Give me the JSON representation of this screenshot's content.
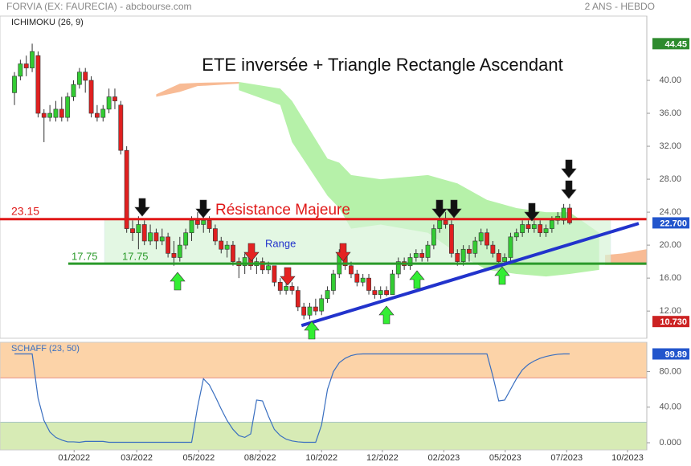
{
  "header": {
    "source": "FORVIA (EX: FAURECIA) - abcbourse.com",
    "period": "2 ANS - HEBDO",
    "indicator": "ICHIMOKU (26, 9)"
  },
  "chart_data": [
    {
      "type": "candlestick",
      "title": "ETE inversée + Triangle Rectangle Ascendant",
      "xlim": [
        -2.45,
        107.07
      ],
      "ylim": [
        8.7,
        47.8
      ],
      "yticks": [
        {
          "value": 12,
          "label": "12.00"
        },
        {
          "value": 16,
          "label": "16.00"
        },
        {
          "value": 20,
          "label": "20.00"
        },
        {
          "value": 24,
          "label": "24.00"
        },
        {
          "value": 28,
          "label": "28.00"
        },
        {
          "value": 32,
          "label": "32.00"
        },
        {
          "value": 36,
          "label": "36.00"
        },
        {
          "value": 40,
          "label": "40.00"
        }
      ],
      "up_color": "#33cc33",
      "down_color": "#e02020",
      "open": [
        38.5,
        40.5,
        42,
        41.5,
        43,
        36,
        35.5,
        35.5,
        36.5,
        35.5,
        38,
        39.5,
        41,
        40,
        36,
        35.5,
        36.5,
        38,
        37,
        31.5,
        22,
        21.5,
        22.5,
        20.5,
        21.5,
        20.5,
        21,
        19,
        18.5,
        20,
        21.5,
        23,
        22.5,
        23,
        22,
        20.5,
        19.5,
        20,
        18,
        17.5,
        18.5,
        17.5,
        18,
        17,
        17.5,
        15.5,
        14.5,
        15,
        14.5,
        12.5,
        11.5,
        12.5,
        12,
        13.5,
        14.5,
        16.5,
        19,
        17.5,
        16.5,
        15.5,
        16,
        14.5,
        14,
        14.5,
        14,
        16.5,
        18,
        17.5,
        18.5,
        19,
        18.5,
        20,
        22,
        23,
        22.5,
        19,
        18,
        19.5,
        19,
        20.5,
        21.5,
        20,
        19,
        18,
        18.5,
        21,
        21.5,
        22.5,
        22,
        22.5,
        21.5,
        22,
        23,
        23,
        24.5
      ],
      "high": [
        41,
        42.5,
        43,
        44.45,
        43.5,
        36.5,
        37,
        37.5,
        38,
        38.5,
        40,
        41.5,
        41.5,
        40.5,
        37,
        37,
        39,
        39,
        37.5,
        32,
        23,
        23.5,
        23,
        22.5,
        22,
        22,
        21.5,
        20.5,
        21,
        22,
        23.5,
        24,
        23.8,
        23.5,
        22.5,
        21,
        20.5,
        20.5,
        18.5,
        19,
        19,
        18.5,
        18.5,
        18,
        17.5,
        16,
        15.5,
        15.5,
        15,
        13,
        13,
        13.5,
        14,
        15,
        17,
        19.5,
        19.5,
        18,
        17,
        16.5,
        16.5,
        15,
        15,
        15,
        17,
        18.5,
        18.5,
        19,
        19.5,
        19.5,
        20.5,
        22.5,
        24,
        24,
        23,
        19.5,
        20,
        20,
        21,
        22,
        22,
        20.5,
        19.5,
        19,
        21.5,
        22,
        23,
        23,
        23,
        23,
        22.5,
        23.5,
        24,
        25,
        25
      ],
      "low": [
        37,
        40,
        40.5,
        41,
        35.5,
        32.5,
        35,
        35,
        35,
        35,
        37.5,
        39,
        38.5,
        35.5,
        35,
        35,
        36,
        36.5,
        31,
        21.5,
        20.5,
        19.5,
        20,
        20,
        19.5,
        20,
        18.5,
        17.5,
        18,
        19.5,
        20.5,
        22,
        21.5,
        21.5,
        20,
        19,
        18.5,
        17.5,
        16,
        16.5,
        17,
        16.5,
        16.5,
        16.5,
        15,
        14,
        14,
        14,
        12,
        11,
        11,
        11.5,
        11.5,
        13,
        14,
        16,
        17,
        16,
        15,
        15,
        14,
        13.5,
        13.5,
        13.8,
        14,
        16,
        17,
        17,
        18,
        18,
        18,
        19.5,
        21.5,
        22,
        18.5,
        17.5,
        17.5,
        18,
        18.5,
        20,
        19.5,
        18.5,
        17.5,
        17.5,
        18,
        20.5,
        21,
        21.5,
        21.5,
        21,
        21,
        21.5,
        22.5,
        22.5,
        22.5
      ],
      "close": [
        40.5,
        42,
        41.5,
        43.5,
        36,
        35.5,
        36,
        36.5,
        35.5,
        38,
        39.5,
        41,
        40,
        36,
        35.5,
        36.5,
        38,
        37.5,
        31.5,
        22,
        21.5,
        22.5,
        20.5,
        21.5,
        20.5,
        21,
        19,
        18.5,
        20,
        21.5,
        23,
        22.5,
        23,
        22,
        20.5,
        19.5,
        20,
        18,
        17.5,
        18.5,
        17.5,
        18,
        17,
        17.5,
        15.5,
        14.5,
        15,
        14.5,
        12.5,
        11.5,
        12.5,
        12,
        13.5,
        14.5,
        16.5,
        19,
        17.5,
        16.5,
        15.5,
        16,
        14.5,
        14,
        14.5,
        14,
        16.5,
        18,
        17.5,
        18.5,
        19,
        18.5,
        20,
        22,
        23,
        22.5,
        19,
        18,
        19.5,
        19,
        20.5,
        21.5,
        20,
        19,
        18,
        18.5,
        21,
        21.5,
        22.5,
        22,
        22.5,
        21.5,
        22,
        23,
        23.5,
        24.5,
        22.7
      ],
      "cloud_bull": {
        "color": "#aef0a0",
        "x": [
          38,
          45,
          47,
          53,
          55,
          57,
          62,
          70,
          75,
          80,
          85,
          90,
          94,
          99
        ],
        "upper": [
          39.8,
          39,
          37.5,
          30.5,
          30,
          28.5,
          28,
          28.5,
          27.5,
          25.5,
          24.5,
          24,
          24,
          21.5
        ],
        "lower": [
          38.8,
          37,
          32.5,
          26,
          24.5,
          22,
          22.5,
          21.5,
          19,
          17,
          16.5,
          16.2,
          16.5,
          17
        ]
      },
      "cloud_bear": [
        {
          "color": "#f7b48a",
          "x": [
            24,
            28,
            31,
            38
          ],
          "upper": [
            38.3,
            39.6,
            39.7,
            39.8
          ],
          "lower": [
            38,
            38.6,
            39.3,
            39.6
          ]
        },
        {
          "color": "#f7b48a",
          "x": [
            100,
            103,
            107
          ],
          "upper": [
            18.8,
            19,
            19.5
          ],
          "lower": [
            17.6,
            17.6,
            17.6
          ]
        }
      ],
      "resistance": {
        "value": 23.15,
        "label": "23.15",
        "text": "Résistance Majeure",
        "color": "#e01818"
      },
      "support": {
        "value": 17.75,
        "label": "17.75",
        "color": "#2a9a2a"
      },
      "range_label": "Range",
      "trendline": {
        "x": [
          48.6,
          105.7
        ],
        "y": [
          10.24,
          22.63
        ],
        "color": "#2233cc"
      },
      "price_flags": [
        {
          "value": 44.45,
          "label": "44.45",
          "color": "#2e8b2e"
        },
        {
          "value": 22.7,
          "label": "22.700",
          "color": "#2255cc"
        },
        {
          "value": 10.73,
          "label": "10.730",
          "color": "#cc2222"
        }
      ]
    },
    {
      "type": "line",
      "title": "SCHAFF (23, 50)",
      "color": "#3a6fc0",
      "xlim": [
        -2.45,
        107.07
      ],
      "ylim": [
        -8.1,
        113
      ],
      "yticks": [
        {
          "value": 0,
          "label": "0.000"
        },
        {
          "value": 40,
          "label": "40.00"
        },
        {
          "value": 80,
          "label": "80.00"
        }
      ],
      "upper_band": {
        "value": 73,
        "color": "#fcd3a8"
      },
      "lower_band": {
        "value": 23,
        "color": "#d7ebb5"
      },
      "xticks": [
        {
          "value": 10.1,
          "label": "01/2022"
        },
        {
          "value": 20.7,
          "label": "03/2022"
        },
        {
          "value": 31.2,
          "label": "05/2022"
        },
        {
          "value": 41.6,
          "label": "08/2022"
        },
        {
          "value": 52,
          "label": "10/2022"
        },
        {
          "value": 62.3,
          "label": "12/2022"
        },
        {
          "value": 72.7,
          "label": "02/2023"
        },
        {
          "value": 83.1,
          "label": "05/2023"
        },
        {
          "value": 93.5,
          "label": "07/2023"
        },
        {
          "value": 103.8,
          "label": "10/2023"
        }
      ],
      "values": [
        99.89,
        99.89,
        99.89,
        99.89,
        50,
        25,
        12,
        6,
        3,
        1,
        1,
        0.5,
        1.5,
        1.5,
        1.5,
        1.5,
        0.5,
        0.5,
        0.5,
        0.5,
        0.5,
        0.5,
        0.5,
        0.5,
        0.5,
        0.5,
        0.5,
        0.5,
        0.5,
        0.5,
        0.5,
        40,
        72,
        65,
        52,
        38,
        25,
        15,
        8,
        6,
        10,
        48,
        47,
        30,
        15,
        8,
        4,
        2,
        1,
        0.5,
        0.5,
        0.5,
        20,
        60,
        80,
        90,
        95,
        98,
        99.5,
        99.89,
        99.89,
        99.89,
        99.89,
        99.89,
        99.89,
        99.89,
        99.89,
        99.89,
        99.89,
        99.89,
        99.89,
        99.89,
        99.89,
        99.89,
        99.89,
        99.89,
        99.89,
        99.89,
        99.89,
        99.89,
        99.89,
        75,
        47,
        48,
        60,
        72,
        82,
        88,
        92,
        95,
        97,
        98.5,
        99.5,
        99.89,
        99.89
      ],
      "price_flags": [
        {
          "value": 99.89,
          "label": "99.89",
          "color": "#2255cc"
        }
      ]
    }
  ]
}
